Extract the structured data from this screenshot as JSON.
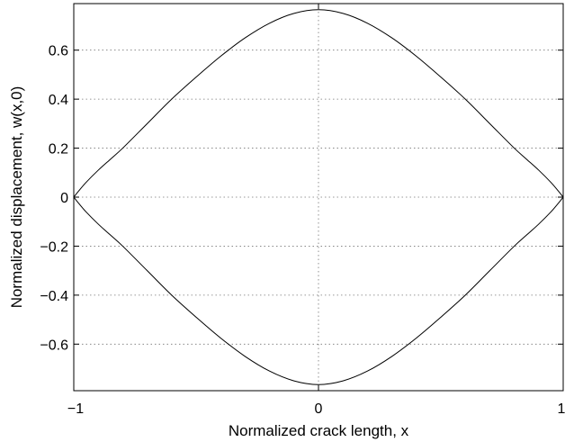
{
  "chart_data": {
    "type": "line",
    "title": "",
    "xlabel": "Normalized crack length, x",
    "ylabel": "Normalized displacement, w(x,0)",
    "xlim": [
      -1,
      1
    ],
    "ylim": [
      -0.79,
      0.79
    ],
    "xticks": [
      -1,
      0,
      1
    ],
    "xtick_labels": [
      "−1",
      "0",
      "1"
    ],
    "yticks": [
      0.6,
      0.4,
      0.2,
      0,
      -0.2,
      -0.4,
      -0.6
    ],
    "ytick_labels": [
      "0.6",
      "0.4",
      "0.2",
      "0",
      "−0.2",
      "−0.4",
      "−0.6"
    ],
    "grid": true,
    "line_color": "#000000",
    "series": [
      {
        "x": [
          -1,
          -0.98,
          -0.95,
          -0.9,
          -0.85,
          -0.8,
          -0.7,
          -0.6,
          -0.5,
          -0.4,
          -0.3,
          -0.2,
          -0.1,
          0,
          0.1,
          0.2,
          0.3,
          0.4,
          0.5,
          0.6,
          0.7,
          0.8,
          0.85,
          0.9,
          0.95,
          0.98,
          1
        ],
        "y": [
          0,
          0.025,
          0.06,
          0.11,
          0.155,
          0.2,
          0.3,
          0.4,
          0.49,
          0.575,
          0.65,
          0.71,
          0.75,
          0.765,
          0.75,
          0.71,
          0.65,
          0.575,
          0.49,
          0.4,
          0.3,
          0.2,
          0.155,
          0.11,
          0.06,
          0.025,
          0
        ]
      },
      {
        "x": [
          -1,
          -0.98,
          -0.95,
          -0.9,
          -0.85,
          -0.8,
          -0.7,
          -0.6,
          -0.5,
          -0.4,
          -0.3,
          -0.2,
          -0.1,
          0,
          0.1,
          0.2,
          0.3,
          0.4,
          0.5,
          0.6,
          0.7,
          0.8,
          0.85,
          0.9,
          0.95,
          0.98,
          1
        ],
        "y": [
          0,
          -0.025,
          -0.06,
          -0.11,
          -0.155,
          -0.2,
          -0.3,
          -0.4,
          -0.49,
          -0.575,
          -0.65,
          -0.71,
          -0.75,
          -0.765,
          -0.75,
          -0.71,
          -0.65,
          -0.575,
          -0.49,
          -0.4,
          -0.3,
          -0.2,
          -0.155,
          -0.11,
          -0.06,
          -0.025,
          0
        ]
      }
    ]
  }
}
